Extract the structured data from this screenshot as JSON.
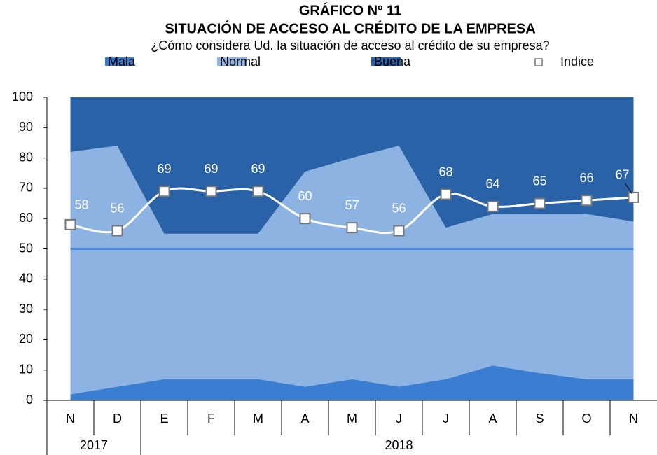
{
  "chart_data": {
    "type": "stacked-area",
    "title": "GRÁFICO Nº 11",
    "subtitle": "SITUACIÓN DE ACCESO AL CRÉDITO DE LA EMPRESA",
    "question": "¿Cómo considera Ud. la situación de acceso al crédito de su empresa?",
    "groups": [
      {
        "label": "2017",
        "categories": [
          "N",
          "D"
        ]
      },
      {
        "label": "2018",
        "categories": [
          "E",
          "F",
          "M",
          "A",
          "M",
          "J",
          "J",
          "A",
          "S",
          "O",
          "N"
        ]
      }
    ],
    "series": [
      {
        "name": "Mala",
        "color": "#3b7dd0",
        "values": [
          2,
          4.5,
          7,
          7,
          7,
          4.5,
          7,
          4.5,
          7,
          11.5,
          9,
          7,
          7
        ]
      },
      {
        "name": "Normal",
        "color": "#8db3e2",
        "values": [
          80,
          79.5,
          48,
          48,
          48,
          71,
          73,
          79.5,
          50,
          50,
          52.5,
          54.5,
          52
        ]
      },
      {
        "name": "Buena",
        "color": "#2a62a8",
        "values": [
          18,
          16,
          45,
          45,
          45,
          24.5,
          20,
          16,
          43,
          38.5,
          38.5,
          38.5,
          41
        ]
      }
    ],
    "line": {
      "name": "Indice",
      "color": "#ffffff",
      "values": [
        58,
        56,
        69,
        69,
        69,
        60,
        57,
        56,
        68,
        64,
        65,
        66,
        67
      ]
    },
    "reference_line": {
      "value": 50,
      "color": "#4a8ad8"
    },
    "ylim": [
      0,
      100
    ],
    "yticks": [
      0,
      10,
      20,
      30,
      40,
      50,
      60,
      70,
      80,
      90,
      100
    ]
  }
}
